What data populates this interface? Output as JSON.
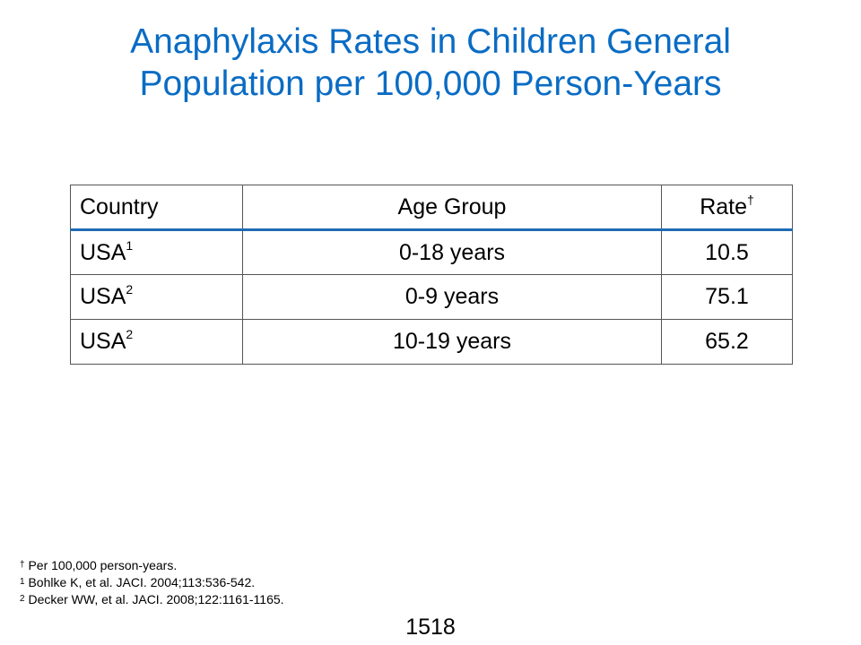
{
  "title": {
    "line1": "Anaphylaxis Rates in Children General",
    "line2": "Population per 100,000 Person-Years"
  },
  "table": {
    "headers": {
      "country": "Country",
      "age_group": "Age Group",
      "rate": "Rate",
      "rate_mark": "†"
    },
    "rows": [
      {
        "country": "USA",
        "ref": "1",
        "age_group": "0-18 years",
        "rate": "10.5"
      },
      {
        "country": "USA",
        "ref": "2",
        "age_group": "0-9 years",
        "rate": "75.1"
      },
      {
        "country": "USA",
        "ref": "2",
        "age_group": "10-19 years",
        "rate": "65.2"
      }
    ]
  },
  "footnotes": [
    {
      "mark": "†",
      "text": " Per 100,000 person-years."
    },
    {
      "mark": "1",
      "text": " Bohlke K, et al. JACI. 2004;113:536-542."
    },
    {
      "mark": "2",
      "text": " Decker WW, et al. JACI. 2008;122:1161-1165."
    }
  ],
  "page_number": "1518"
}
